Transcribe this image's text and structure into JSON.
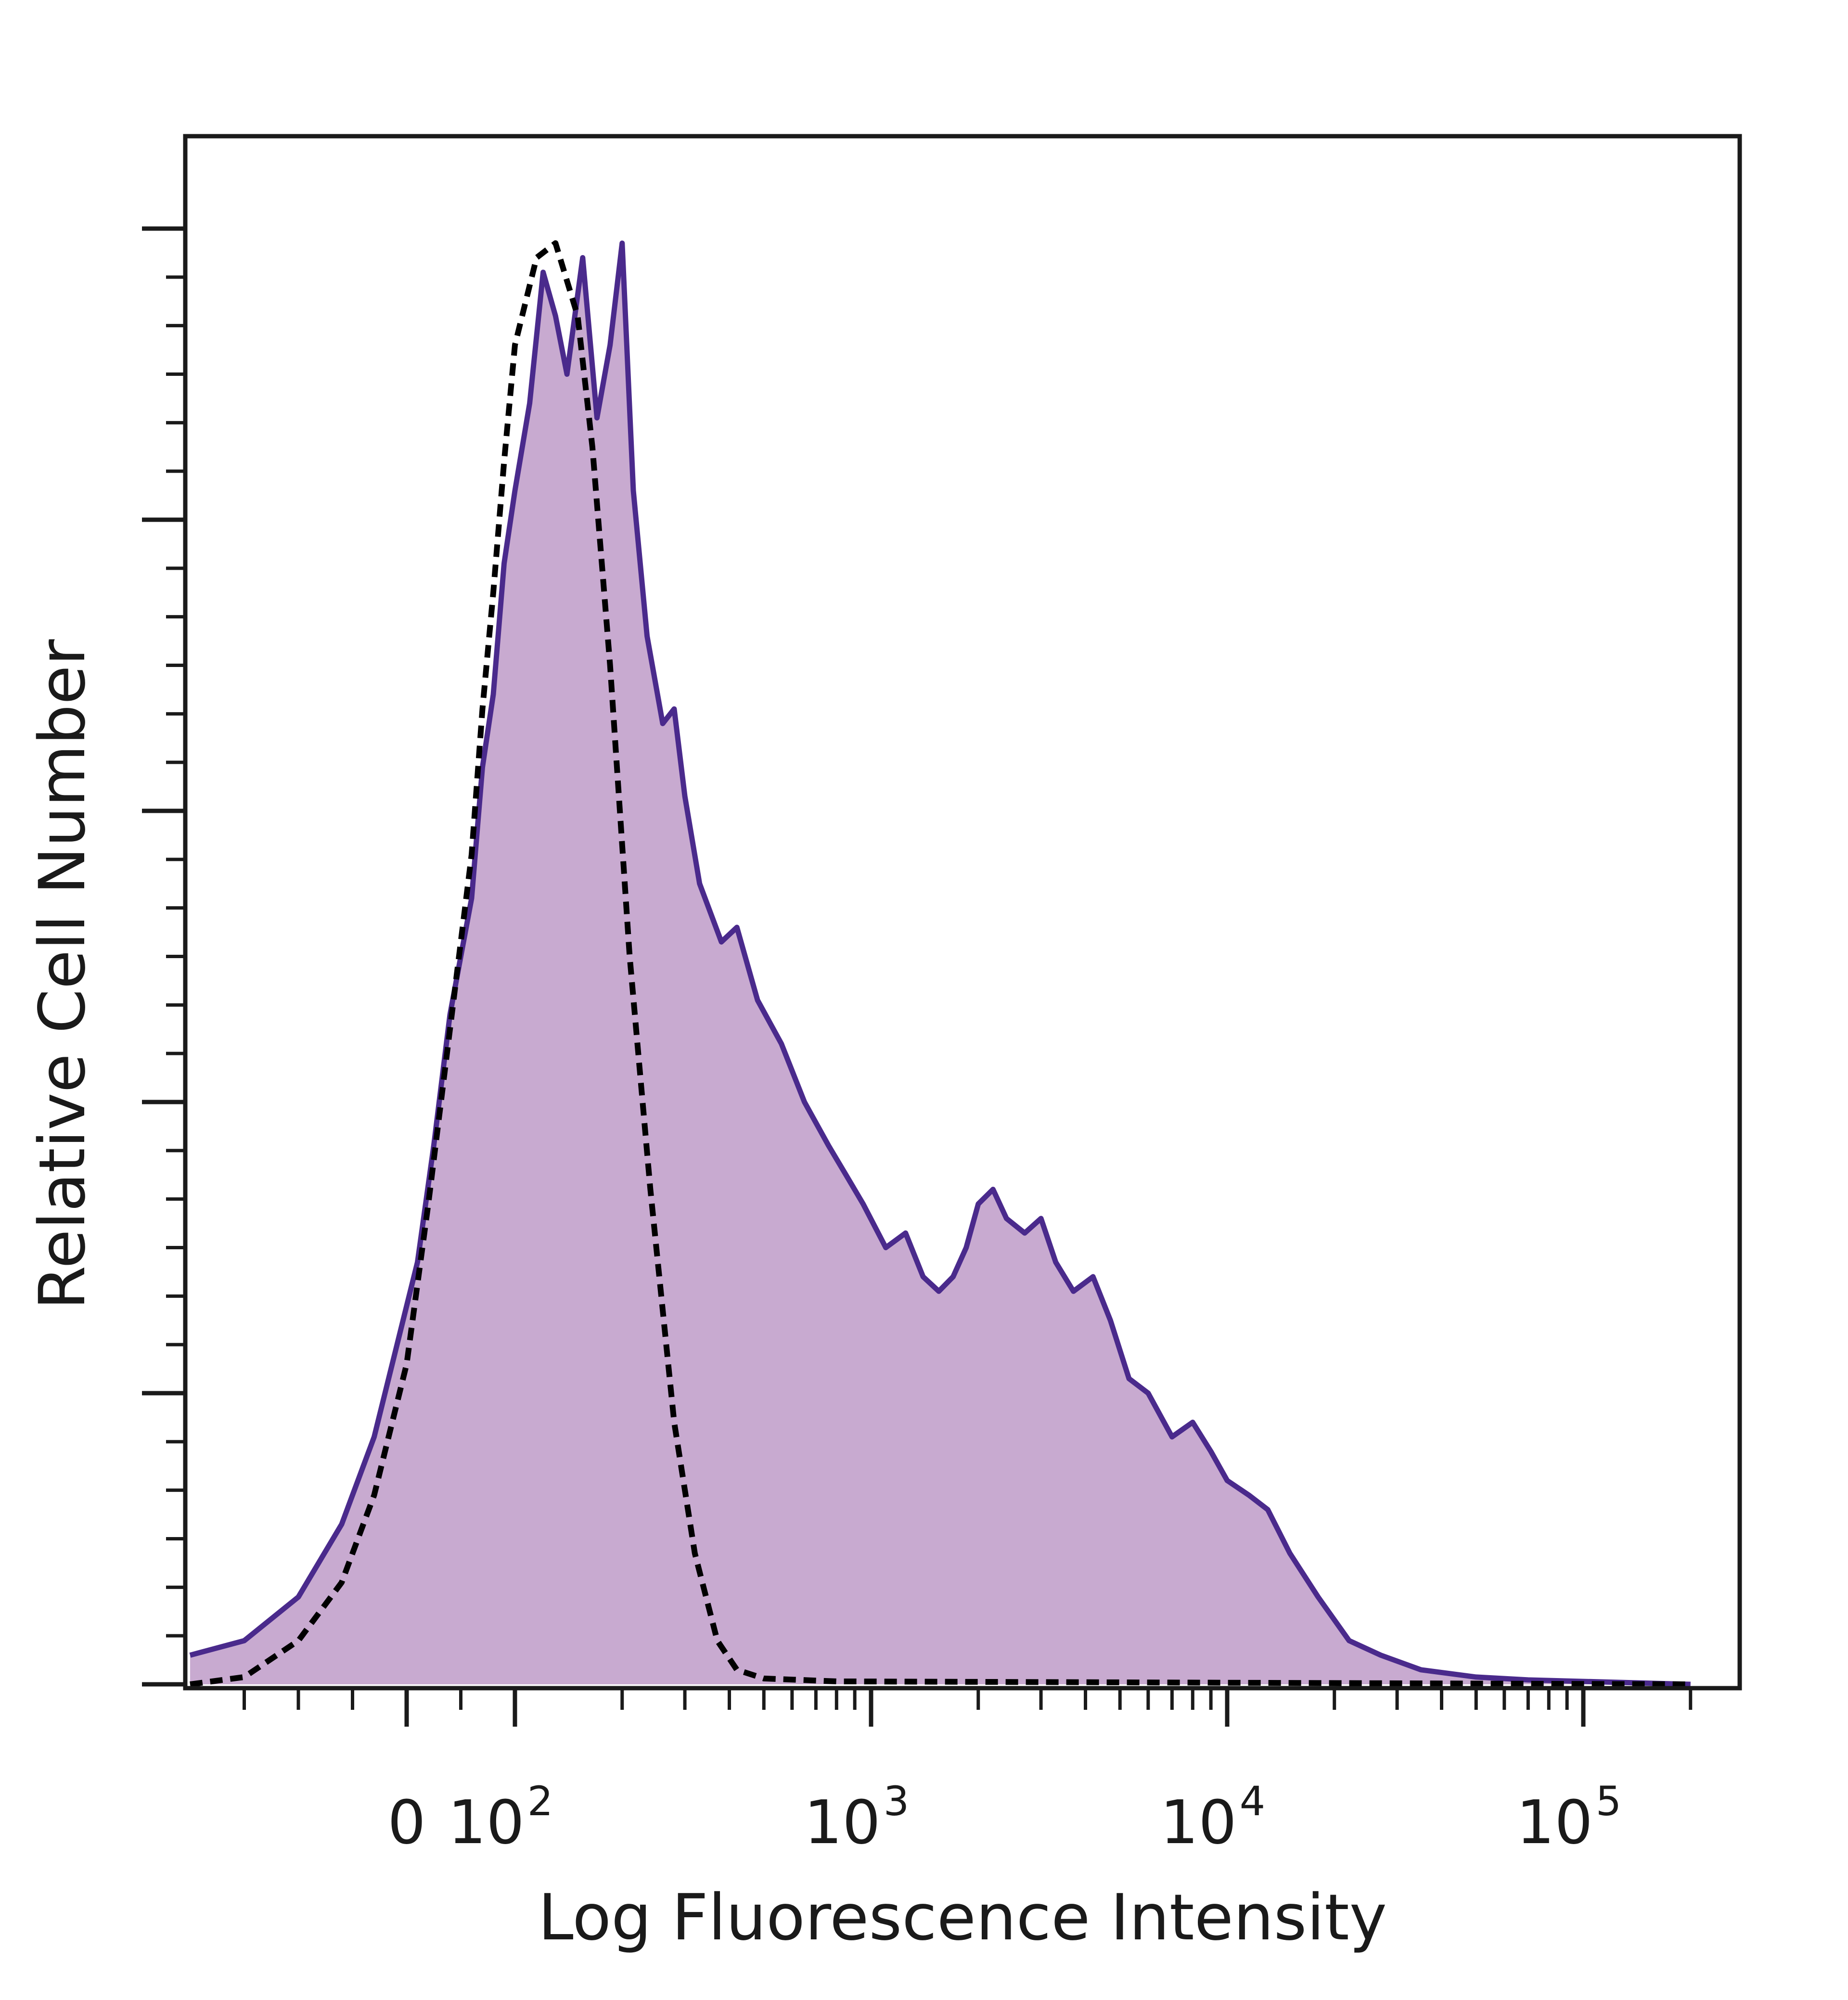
{
  "chart_data": {
    "type": "area",
    "title": "",
    "xlabel": "Log Fluorescence Intensity",
    "ylabel": "Relative Cell Number",
    "x_scale": "biexponential (log with linear segment around 0)",
    "xlim": [
      -200,
      200000
    ],
    "ylim": [
      0,
      100
    ],
    "x_ticks": [
      {
        "value": 0,
        "base": "0",
        "exp": ""
      },
      {
        "value": 100,
        "base": "10",
        "exp": "2"
      },
      {
        "value": 1000,
        "base": "10",
        "exp": "3"
      },
      {
        "value": 10000,
        "base": "10",
        "exp": "4"
      },
      {
        "value": 100000,
        "base": "10",
        "exp": "5"
      }
    ],
    "y_tick_count": 6,
    "grid": false,
    "legend": "none",
    "series": [
      {
        "style": "filled purple histogram, solid outline",
        "fill_color": "#c8aad0",
        "line_color": "#4a2a8c",
        "points": [
          [
            -200,
            2
          ],
          [
            -150,
            3
          ],
          [
            -100,
            6
          ],
          [
            -60,
            11
          ],
          [
            -30,
            17
          ],
          [
            0,
            26
          ],
          [
            10,
            29
          ],
          [
            25,
            37
          ],
          [
            40,
            46
          ],
          [
            60,
            54
          ],
          [
            70,
            63
          ],
          [
            80,
            68
          ],
          [
            90,
            77
          ],
          [
            100,
            82
          ],
          [
            110,
            88
          ],
          [
            120,
            97
          ],
          [
            130,
            94
          ],
          [
            140,
            90
          ],
          [
            155,
            98
          ],
          [
            170,
            87
          ],
          [
            185,
            92
          ],
          [
            200,
            99
          ],
          [
            215,
            82
          ],
          [
            235,
            72
          ],
          [
            260,
            66
          ],
          [
            280,
            67
          ],
          [
            300,
            61
          ],
          [
            330,
            55
          ],
          [
            380,
            51
          ],
          [
            420,
            52
          ],
          [
            480,
            47
          ],
          [
            560,
            44
          ],
          [
            650,
            40
          ],
          [
            760,
            37
          ],
          [
            850,
            35
          ],
          [
            950,
            33
          ],
          [
            1100,
            30
          ],
          [
            1250,
            31
          ],
          [
            1400,
            28
          ],
          [
            1550,
            27
          ],
          [
            1700,
            28
          ],
          [
            1850,
            30
          ],
          [
            2000,
            33
          ],
          [
            2200,
            34
          ],
          [
            2400,
            32
          ],
          [
            2700,
            31
          ],
          [
            3000,
            32
          ],
          [
            3300,
            29
          ],
          [
            3700,
            27
          ],
          [
            4200,
            28
          ],
          [
            4700,
            25
          ],
          [
            5300,
            21
          ],
          [
            6000,
            20
          ],
          [
            7000,
            17
          ],
          [
            8000,
            18
          ],
          [
            9000,
            16
          ],
          [
            10000,
            14
          ],
          [
            11500,
            13
          ],
          [
            13000,
            12
          ],
          [
            15000,
            9
          ],
          [
            18000,
            6
          ],
          [
            22000,
            3
          ],
          [
            27000,
            2
          ],
          [
            35000,
            1
          ],
          [
            50000,
            0.5
          ],
          [
            70000,
            0.3
          ],
          [
            200000,
            0
          ]
        ]
      },
      {
        "style": "dashed black outline (control)",
        "line_color": "#000000",
        "points": [
          [
            -200,
            0
          ],
          [
            -150,
            0.5
          ],
          [
            -100,
            3
          ],
          [
            -60,
            7
          ],
          [
            -30,
            13
          ],
          [
            0,
            22
          ],
          [
            20,
            33
          ],
          [
            40,
            45
          ],
          [
            60,
            57
          ],
          [
            70,
            67
          ],
          [
            80,
            75
          ],
          [
            90,
            84
          ],
          [
            100,
            92
          ],
          [
            115,
            98
          ],
          [
            130,
            99
          ],
          [
            150,
            94
          ],
          [
            165,
            85
          ],
          [
            185,
            70
          ],
          [
            210,
            50
          ],
          [
            240,
            34
          ],
          [
            280,
            18
          ],
          [
            320,
            9
          ],
          [
            370,
            3
          ],
          [
            420,
            1
          ],
          [
            500,
            0.4
          ],
          [
            800,
            0.2
          ],
          [
            200000,
            0
          ]
        ]
      }
    ]
  }
}
